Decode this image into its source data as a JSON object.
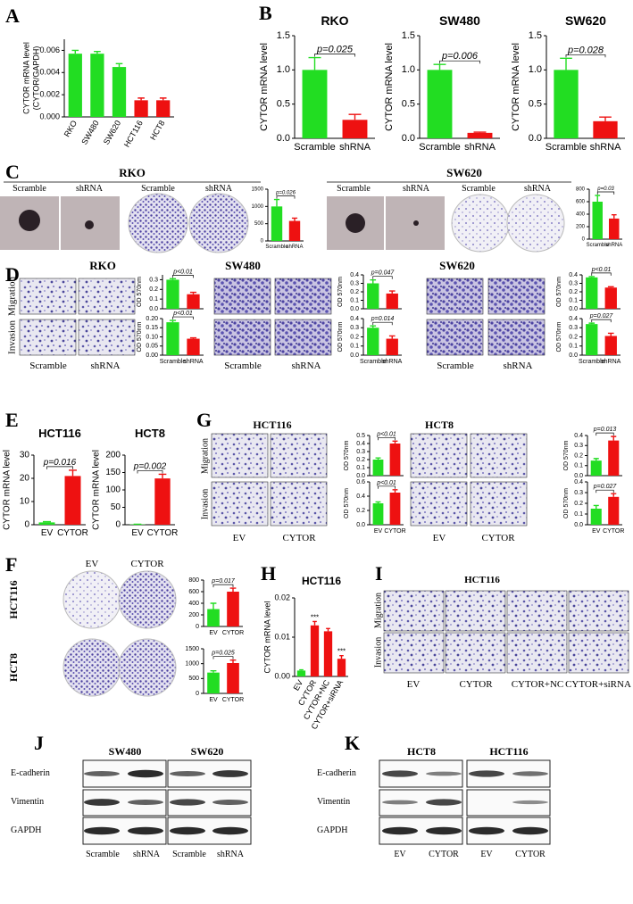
{
  "figure_labels": [
    "A",
    "B",
    "C",
    "RKO",
    "Scramble",
    "shRNA",
    "Scramble",
    "shRNA",
    "SW620",
    "Scramble",
    "shRNA",
    "Scramble",
    "shRNA",
    "D",
    "RKO",
    "Migration",
    "Invasion",
    "Scramble",
    "shRNA",
    "SW480",
    "Scramble",
    "shRNA",
    "SW620",
    "Scramble",
    "shRNA",
    "E",
    "G",
    "HCT116",
    "Migration",
    "Invasion",
    "EV",
    "CYTOR",
    "HCT8",
    "EV",
    "CYTOR",
    "F",
    "EV",
    "CYTOR",
    "HCT116",
    "HCT8",
    "H",
    "I",
    "HCT116",
    "Migration",
    "Invasion",
    "EV",
    "CYTOR",
    "CYTOR+NC",
    "CYTOR+siRNA",
    "J",
    "SW480",
    "SW620",
    "E-cadherin",
    "Vimentin",
    "GAPDH",
    "Scramble",
    "shRNA",
    "Scramble",
    "shRNA",
    "K",
    "HCT8",
    "HCT116",
    "E-cadherin",
    "Vimentin",
    "GAPDH",
    "EV",
    "CYTOR",
    "EV",
    "CYTOR"
  ],
  "chart_data": [
    {
      "type": "bar",
      "ylabel": [
        "CYTOR mRNA level",
        "(CYTOR/GAPDH)"
      ],
      "categories": [
        "RKO",
        "SW480",
        "SW620",
        "HCT116",
        "HCT8"
      ],
      "values": [
        0.0057,
        0.0057,
        0.0045,
        0.0015,
        0.0015
      ],
      "errors": [
        0.0003,
        0.0002,
        0.0003,
        0.0002,
        0.0002
      ],
      "colors": [
        "#22dd22",
        "#22dd22",
        "#22dd22",
        "#ee1111",
        "#ee1111"
      ],
      "ylim": [
        0,
        0.007
      ],
      "yticks": [
        {
          "value": 0,
          "label": "0.000"
        },
        0.002,
        0.004,
        0.006
      ]
    },
    {
      "type": "bar",
      "title": "RKO",
      "ylabel": "CYTOR mRNA level",
      "categories": [
        "Scramble",
        "shRNA"
      ],
      "values": [
        1.0,
        0.27
      ],
      "errors": [
        0.18,
        0.08
      ],
      "colors": [
        "#22dd22",
        "#ee1111"
      ],
      "ylim": [
        0,
        1.5
      ],
      "yticks": [
        {
          "value": 0,
          "label": "0.0"
        },
        0.5,
        {
          "value": 1,
          "label": "1.0"
        },
        1.5
      ],
      "significance": "p=0.025"
    },
    {
      "type": "bar",
      "title": "SW480",
      "ylabel": "CYTOR mRNA level",
      "categories": [
        "Scramble",
        "shRNA"
      ],
      "values": [
        1.0,
        0.08
      ],
      "errors": [
        0.08,
        0.01
      ],
      "colors": [
        "#22dd22",
        "#ee1111"
      ],
      "ylim": [
        0,
        1.5
      ],
      "yticks": [
        {
          "value": 0,
          "label": "0.0"
        },
        0.5,
        {
          "value": 1,
          "label": "1.0"
        },
        1.5
      ],
      "significance": "p=0.006"
    },
    {
      "type": "bar",
      "title": "SW620",
      "ylabel": "CYTOR mRNA level",
      "categories": [
        "Scramble",
        "shRNA"
      ],
      "values": [
        1.0,
        0.25
      ],
      "errors": [
        0.17,
        0.06
      ],
      "colors": [
        "#22dd22",
        "#ee1111"
      ],
      "ylim": [
        0,
        1.5
      ],
      "yticks": [
        {
          "value": 0,
          "label": "0.0"
        },
        0.5,
        {
          "value": 1,
          "label": "1.0"
        },
        1.5
      ],
      "significance": "p=0.028"
    },
    {
      "type": "bar",
      "categories": [
        "Scramble",
        "shRNA"
      ],
      "values": [
        1000,
        580
      ],
      "errors": [
        200,
        80
      ],
      "colors": [
        "#22dd22",
        "#ee1111"
      ],
      "ylim": [
        0,
        1500
      ],
      "yticks": [
        0,
        500,
        1000,
        1500
      ],
      "significance": "p=0.026"
    },
    {
      "type": "bar",
      "categories": [
        "Scramble",
        "shRNA"
      ],
      "values": [
        600,
        330
      ],
      "errors": [
        100,
        60
      ],
      "colors": [
        "#22dd22",
        "#ee1111"
      ],
      "ylim": [
        0,
        800
      ],
      "yticks": [
        0,
        200,
        400,
        600,
        800
      ],
      "significance": "p=0.03"
    },
    {
      "type": "bar",
      "ylabel": "OD 570nm",
      "categories": [
        null,
        null
      ],
      "values": [
        0.3,
        0.15
      ],
      "errors": [
        0.01,
        0.02
      ],
      "colors": [
        "#22dd22",
        "#ee1111"
      ],
      "ylim": [
        0,
        0.35
      ],
      "yticks": [
        {
          "value": 0,
          "label": "0.0"
        },
        0.1,
        0.2,
        0.3
      ],
      "significance": "p<0.01"
    },
    {
      "type": "bar",
      "ylabel": "OD 570nm",
      "categories": [
        "Scramble",
        "shRNA"
      ],
      "values": [
        0.18,
        0.09
      ],
      "errors": [
        0.01,
        0.005
      ],
      "colors": [
        "#22dd22",
        "#ee1111"
      ],
      "ylim": [
        0,
        0.2
      ],
      "yticks": [
        {
          "value": 0,
          "label": "0.00"
        },
        0.05,
        {
          "value": 0.1,
          "label": "0.10"
        },
        0.15,
        {
          "value": 0.2,
          "label": "0.20"
        }
      ],
      "significance": "p<0.01"
    },
    {
      "type": "bar",
      "ylabel": "OD 570nm",
      "categories": [
        null,
        null
      ],
      "values": [
        0.3,
        0.18
      ],
      "errors": [
        0.04,
        0.03
      ],
      "colors": [
        "#22dd22",
        "#ee1111"
      ],
      "ylim": [
        0,
        0.4
      ],
      "yticks": [
        {
          "value": 0,
          "label": "0.0"
        },
        0.1,
        0.2,
        0.3,
        0.4
      ],
      "significance": "p=0.047"
    },
    {
      "type": "bar",
      "ylabel": "OD 570nm",
      "categories": [
        "Scramble",
        "shRNA"
      ],
      "values": [
        0.3,
        0.18
      ],
      "errors": [
        0.02,
        0.03
      ],
      "colors": [
        "#22dd22",
        "#ee1111"
      ],
      "ylim": [
        0,
        0.4
      ],
      "yticks": [
        {
          "value": 0,
          "label": "0.0"
        },
        0.1,
        0.2,
        0.3,
        0.4
      ],
      "significance": "p=0.014"
    },
    {
      "type": "bar",
      "ylabel": "OD 570nm",
      "categories": [
        null,
        null
      ],
      "values": [
        0.37,
        0.25
      ],
      "errors": [
        0.01,
        0.01
      ],
      "colors": [
        "#22dd22",
        "#ee1111"
      ],
      "ylim": [
        0,
        0.4
      ],
      "yticks": [
        {
          "value": 0,
          "label": "0.0"
        },
        0.1,
        0.2,
        0.3,
        0.4
      ],
      "significance": "p<0.01"
    },
    {
      "type": "bar",
      "ylabel": "OD 570nm",
      "categories": [
        "Scramble",
        "shRNA"
      ],
      "values": [
        0.34,
        0.21
      ],
      "errors": [
        0.01,
        0.03
      ],
      "colors": [
        "#22dd22",
        "#ee1111"
      ],
      "ylim": [
        0,
        0.4
      ],
      "yticks": [
        {
          "value": 0,
          "label": "0.0"
        },
        0.1,
        0.2,
        0.3,
        0.4
      ],
      "significance": "p=0.027"
    },
    {
      "type": "bar",
      "title": "HCT116",
      "ylabel": "CYTOR mRNA level",
      "categories": [
        "EV",
        "CYTOR"
      ],
      "values": [
        1,
        21
      ],
      "errors": [
        0.3,
        2.5
      ],
      "colors": [
        "#22dd22",
        "#ee1111"
      ],
      "ylim": [
        0,
        30
      ],
      "yticks": [
        0,
        10,
        20,
        30
      ],
      "significance": "p=0.016"
    },
    {
      "type": "bar",
      "title": "HCT8",
      "ylabel": "CYTOR mRNA level",
      "categories": [
        "EV",
        "CYTOR"
      ],
      "values": [
        1,
        133
      ],
      "errors": [
        0.5,
        12
      ],
      "colors": [
        "#22dd22",
        "#ee1111"
      ],
      "ylim": [
        0,
        200
      ],
      "yticks": [
        0,
        50,
        100,
        150,
        200
      ],
      "significance": "p=0.002"
    },
    {
      "type": "bar",
      "ylabel": "OD 570nm",
      "categories": [
        null,
        null
      ],
      "values": [
        0.2,
        0.4
      ],
      "errors": [
        0.02,
        0.03
      ],
      "colors": [
        "#22dd22",
        "#ee1111"
      ],
      "ylim": [
        0,
        0.5
      ],
      "yticks": [
        {
          "value": 0,
          "label": "0.0"
        },
        0.1,
        0.2,
        0.3,
        0.4,
        0.5
      ],
      "significance": "p<0.01"
    },
    {
      "type": "bar",
      "ylabel": "OD 570nm",
      "categories": [
        "EV",
        "CYTOR"
      ],
      "values": [
        0.3,
        0.45
      ],
      "errors": [
        0.02,
        0.04
      ],
      "colors": [
        "#22dd22",
        "#ee1111"
      ],
      "ylim": [
        0,
        0.6
      ],
      "yticks": [
        {
          "value": 0,
          "label": "0.0"
        },
        0.2,
        0.4,
        0.6
      ],
      "significance": "p<0.01"
    },
    {
      "type": "bar",
      "ylabel": "OD 570nm",
      "categories": [
        null,
        null
      ],
      "values": [
        0.15,
        0.35
      ],
      "errors": [
        0.02,
        0.04
      ],
      "colors": [
        "#22dd22",
        "#ee1111"
      ],
      "ylim": [
        0,
        0.4
      ],
      "yticks": [
        {
          "value": 0,
          "label": "0.0"
        },
        0.1,
        0.2,
        0.3,
        0.4
      ],
      "significance": "p=0.013"
    },
    {
      "type": "bar",
      "ylabel": "OD 570nm",
      "categories": [
        "EV",
        "CYTOR"
      ],
      "values": [
        0.15,
        0.26
      ],
      "errors": [
        0.03,
        0.03
      ],
      "colors": [
        "#22dd22",
        "#ee1111"
      ],
      "ylim": [
        0,
        0.4
      ],
      "yticks": [
        {
          "value": 0,
          "label": "0.0"
        },
        0.1,
        0.2,
        0.3,
        0.4
      ],
      "significance": "p=0.027"
    },
    {
      "type": "bar",
      "categories": [
        "EV",
        "CYTOR"
      ],
      "values": [
        300,
        600
      ],
      "errors": [
        100,
        60
      ],
      "colors": [
        "#22dd22",
        "#ee1111"
      ],
      "ylim": [
        0,
        800
      ],
      "yticks": [
        0,
        200,
        400,
        600,
        800
      ],
      "significance": "p=0.017"
    },
    {
      "type": "bar",
      "categories": [
        "EV",
        "CYTOR"
      ],
      "values": [
        700,
        1020
      ],
      "errors": [
        60,
        100
      ],
      "colors": [
        "#22dd22",
        "#ee1111"
      ],
      "ylim": [
        0,
        1500
      ],
      "yticks": [
        0,
        500,
        1000,
        1500
      ],
      "significance": "p=0.025"
    },
    {
      "type": "bar",
      "title": "HCT116",
      "ylabel": "CYTOR mRNA level",
      "categories": [
        "EV",
        "CYTOR",
        "CYTOR+NC",
        "CYTOR+siRNA"
      ],
      "values": [
        0.0015,
        0.013,
        0.0115,
        0.0045
      ],
      "errors": [
        0.0002,
        0.001,
        0.0007,
        0.0008
      ],
      "colors": [
        "#22dd22",
        "#ee1111",
        "#ee1111",
        "#ee1111"
      ],
      "ylim": [
        0,
        0.02
      ],
      "yticks": [
        {
          "value": 0,
          "label": "0.00"
        },
        0.01,
        0.02
      ],
      "bar_labels": [
        null,
        "***",
        null,
        "***"
      ]
    }
  ]
}
